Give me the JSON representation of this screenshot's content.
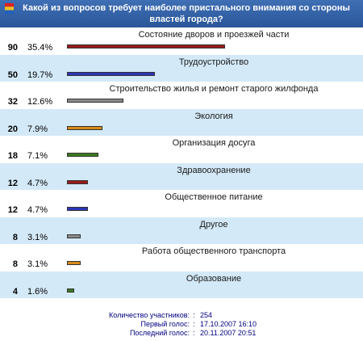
{
  "poll": {
    "question": "Какой из вопросов требует наиболее пристального внимания со стороны властей города?",
    "logo_colors": [
      "#e02020",
      "#f0c020",
      "#2060c0"
    ],
    "options": [
      {
        "label": "Состояние дворов и проезжей части",
        "count": "90",
        "percent": "35.4%",
        "value": 35.4,
        "color": "#9b1c1c"
      },
      {
        "label": "Трудоустройство",
        "count": "50",
        "percent": "19.7%",
        "value": 19.7,
        "color": "#2c35b8"
      },
      {
        "label": "Строительство жилья и ремонт старого жилфонда",
        "count": "32",
        "percent": "12.6%",
        "value": 12.6,
        "color": "#8a8a8a"
      },
      {
        "label": "Экология",
        "count": "20",
        "percent": "7.9%",
        "value": 7.9,
        "color": "#d98a1a"
      },
      {
        "label": "Организация досуга",
        "count": "18",
        "percent": "7.1%",
        "value": 7.1,
        "color": "#3c7a1f"
      },
      {
        "label": "Здравоохранение",
        "count": "12",
        "percent": "4.7%",
        "value": 4.7,
        "color": "#9b1c1c"
      },
      {
        "label": "Общественное питание",
        "count": "12",
        "percent": "4.7%",
        "value": 4.7,
        "color": "#2c35b8"
      },
      {
        "label": "Другое",
        "count": "8",
        "percent": "3.1%",
        "value": 3.1,
        "color": "#8a8a8a"
      },
      {
        "label": "Работа общественного транспорта",
        "count": "8",
        "percent": "3.1%",
        "value": 3.1,
        "color": "#d98a1a"
      },
      {
        "label": "Образование",
        "count": "4",
        "percent": "1.6%",
        "value": 1.6,
        "color": "#3c7a1f"
      }
    ]
  },
  "summary": {
    "participants_label": "Количество участников:",
    "participants_value": "254",
    "first_vote_label": "Первый голос:",
    "first_vote_value": "17.10.2007 16:10",
    "last_vote_label": "Последний голос:",
    "last_vote_value": "20.11.2007 20:51"
  }
}
